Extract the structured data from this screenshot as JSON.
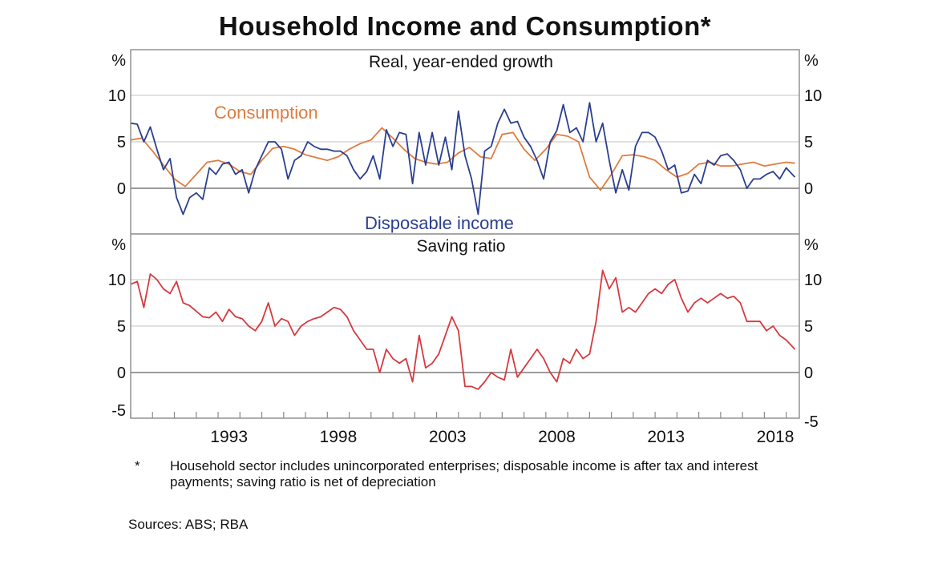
{
  "title": "Household Income and Consumption*",
  "footnote": {
    "marker": "*",
    "text": "Household sector includes unincorporated enterprises; disposable income is after tax and interest payments; saving ratio is net of depreciation"
  },
  "sources": "Sources: ABS; RBA",
  "colors": {
    "consumption": "#e07b3f",
    "disposable_income": "#2b3f8f",
    "saving_ratio": "#d63a3f",
    "grid": "#cfcfcf",
    "zero_line": "#7a7a7a",
    "frame": "#8a8a8a"
  },
  "chart_data": [
    {
      "type": "line",
      "panel": "top",
      "subtitle": "Real, year-ended growth",
      "ylabel_left": "%",
      "ylabel_right": "%",
      "ylim": [
        -5,
        15
      ],
      "yticks": [
        0,
        5,
        10
      ],
      "xticks": [
        1993,
        1998,
        2003,
        2008,
        2013,
        2018
      ],
      "x_range": [
        1988.0,
        2018.6
      ],
      "series": [
        {
          "name": "Consumption",
          "color_key": "consumption",
          "x": [
            1988.0,
            1988.5,
            1989.0,
            1989.5,
            1990.0,
            1990.5,
            1991.0,
            1991.5,
            1992.0,
            1992.5,
            1993.0,
            1993.5,
            1994.0,
            1994.5,
            1995.0,
            1995.5,
            1996.0,
            1996.5,
            1997.0,
            1997.5,
            1998.0,
            1998.5,
            1999.0,
            1999.5,
            2000.0,
            2000.5,
            2001.0,
            2001.5,
            2002.0,
            2002.5,
            2003.0,
            2003.5,
            2004.0,
            2004.5,
            2005.0,
            2005.5,
            2006.0,
            2006.5,
            2007.0,
            2007.5,
            2008.0,
            2008.5,
            2009.0,
            2009.5,
            2010.0,
            2010.5,
            2011.0,
            2011.5,
            2012.0,
            2012.5,
            2013.0,
            2013.5,
            2014.0,
            2014.5,
            2015.0,
            2015.5,
            2016.0,
            2016.5,
            2017.0,
            2017.5,
            2018.0,
            2018.4
          ],
          "y": [
            5.2,
            5.4,
            4.0,
            2.5,
            1.0,
            0.2,
            1.5,
            2.8,
            3.0,
            2.6,
            1.8,
            1.5,
            3.0,
            4.3,
            4.5,
            4.2,
            3.6,
            3.3,
            3.0,
            3.4,
            4.2,
            4.8,
            5.2,
            6.5,
            5.4,
            4.2,
            3.2,
            2.8,
            2.6,
            2.8,
            3.8,
            4.4,
            3.4,
            3.2,
            5.8,
            6.0,
            4.2,
            3.0,
            4.2,
            5.8,
            5.6,
            5.0,
            1.2,
            -0.2,
            1.5,
            3.5,
            3.6,
            3.4,
            3.0,
            2.0,
            1.2,
            1.6,
            2.6,
            2.8,
            2.4,
            2.4,
            2.6,
            2.8,
            2.4,
            2.6,
            2.8,
            2.7
          ]
        },
        {
          "name": "Disposable income",
          "color_key": "disposable_income",
          "x": [
            1988.0,
            1988.3,
            1988.6,
            1988.9,
            1989.2,
            1989.5,
            1989.8,
            1990.1,
            1990.4,
            1990.7,
            1991.0,
            1991.3,
            1991.6,
            1991.9,
            1992.2,
            1992.5,
            1992.8,
            1993.1,
            1993.4,
            1993.7,
            1994.0,
            1994.3,
            1994.6,
            1994.9,
            1995.2,
            1995.5,
            1995.8,
            1996.1,
            1996.4,
            1996.7,
            1997.0,
            1997.3,
            1997.6,
            1997.9,
            1998.2,
            1998.5,
            1998.8,
            1999.1,
            1999.4,
            1999.7,
            2000.0,
            2000.3,
            2000.6,
            2000.9,
            2001.2,
            2001.5,
            2001.8,
            2002.1,
            2002.4,
            2002.7,
            2003.0,
            2003.3,
            2003.6,
            2003.9,
            2004.2,
            2004.5,
            2004.8,
            2005.1,
            2005.4,
            2005.7,
            2006.0,
            2006.3,
            2006.6,
            2006.9,
            2007.2,
            2007.5,
            2007.8,
            2008.1,
            2008.4,
            2008.7,
            2009.0,
            2009.3,
            2009.6,
            2009.9,
            2010.2,
            2010.5,
            2010.8,
            2011.1,
            2011.4,
            2011.7,
            2012.0,
            2012.3,
            2012.6,
            2012.9,
            2013.2,
            2013.5,
            2013.8,
            2014.1,
            2014.4,
            2014.7,
            2015.0,
            2015.3,
            2015.6,
            2015.9,
            2016.2,
            2016.5,
            2016.8,
            2017.1,
            2017.4,
            2017.7,
            2018.0,
            2018.4
          ],
          "y": [
            7.0,
            6.9,
            5.0,
            6.6,
            4.2,
            2.0,
            3.2,
            -1.0,
            -2.8,
            -1.0,
            -0.5,
            -1.2,
            2.2,
            1.5,
            2.6,
            2.8,
            1.5,
            2.0,
            -0.5,
            2.0,
            3.5,
            5.0,
            5.0,
            4.2,
            1.0,
            3.0,
            3.5,
            5.0,
            4.5,
            4.2,
            4.2,
            4.0,
            4.0,
            3.5,
            2.0,
            1.0,
            1.8,
            3.5,
            1.0,
            6.3,
            4.5,
            6.0,
            5.8,
            0.5,
            6.0,
            2.5,
            6.0,
            2.5,
            5.5,
            2.0,
            8.3,
            3.5,
            1.0,
            -2.8,
            4.0,
            4.5,
            7.0,
            8.5,
            7.0,
            7.2,
            5.5,
            4.5,
            3.0,
            1.0,
            5.0,
            6.2,
            9.0,
            6.0,
            6.5,
            5.0,
            9.2,
            5.0,
            7.0,
            3.0,
            -0.5,
            2.0,
            -0.2,
            4.5,
            6.0,
            6.0,
            5.5,
            4.0,
            2.0,
            2.5,
            -0.5,
            -0.3,
            1.5,
            0.5,
            3.0,
            2.5,
            3.5,
            3.7,
            3.0,
            2.0,
            0.0,
            1.0,
            1.0,
            1.5,
            1.8,
            1.0,
            2.2,
            1.2
          ]
        }
      ],
      "annotations": [
        "Consumption",
        "Disposable income"
      ]
    },
    {
      "type": "line",
      "panel": "bottom",
      "subtitle": "Saving ratio",
      "ylabel_left": "%",
      "ylabel_right": "%",
      "ylim": [
        -5,
        15
      ],
      "yticks": [
        -5,
        0,
        5,
        10
      ],
      "xticks": [
        1993,
        1998,
        2003,
        2008,
        2013,
        2018
      ],
      "x_range": [
        1988.0,
        2018.6
      ],
      "series": [
        {
          "name": "Saving ratio",
          "color_key": "saving_ratio",
          "x": [
            1988.0,
            1988.3,
            1988.6,
            1988.9,
            1989.2,
            1989.5,
            1989.8,
            1990.1,
            1990.4,
            1990.7,
            1991.0,
            1991.3,
            1991.6,
            1991.9,
            1992.2,
            1992.5,
            1992.8,
            1993.1,
            1993.4,
            1993.7,
            1994.0,
            1994.3,
            1994.6,
            1994.9,
            1995.2,
            1995.5,
            1995.8,
            1996.1,
            1996.4,
            1996.7,
            1997.0,
            1997.3,
            1997.6,
            1997.9,
            1998.2,
            1998.5,
            1998.8,
            1999.1,
            1999.4,
            1999.7,
            2000.0,
            2000.3,
            2000.6,
            2000.9,
            2001.2,
            2001.5,
            2001.8,
            2002.1,
            2002.4,
            2002.7,
            2003.0,
            2003.3,
            2003.6,
            2003.9,
            2004.2,
            2004.5,
            2004.8,
            2005.1,
            2005.4,
            2005.7,
            2006.0,
            2006.3,
            2006.6,
            2006.9,
            2007.2,
            2007.5,
            2007.8,
            2008.1,
            2008.4,
            2008.7,
            2009.0,
            2009.3,
            2009.6,
            2009.9,
            2010.2,
            2010.5,
            2010.8,
            2011.1,
            2011.4,
            2011.7,
            2012.0,
            2012.3,
            2012.6,
            2012.9,
            2013.2,
            2013.5,
            2013.8,
            2014.1,
            2014.4,
            2014.7,
            2015.0,
            2015.3,
            2015.6,
            2015.9,
            2016.2,
            2016.5,
            2016.8,
            2017.1,
            2017.4,
            2017.7,
            2018.0,
            2018.4
          ],
          "y": [
            9.5,
            9.8,
            7.0,
            10.6,
            10.0,
            9.0,
            8.5,
            9.8,
            7.5,
            7.2,
            6.6,
            6.0,
            5.9,
            6.5,
            5.5,
            6.8,
            6.0,
            5.8,
            5.0,
            4.5,
            5.5,
            7.5,
            5.0,
            5.8,
            5.5,
            4.0,
            5.0,
            5.5,
            5.8,
            6.0,
            6.5,
            7.0,
            6.8,
            6.0,
            4.5,
            3.5,
            2.5,
            2.5,
            0.0,
            2.5,
            1.5,
            1.0,
            1.5,
            -1.0,
            4.0,
            0.5,
            1.0,
            2.0,
            4.0,
            6.0,
            4.5,
            -1.5,
            -1.5,
            -1.8,
            -1.0,
            0.0,
            -0.5,
            -0.8,
            2.5,
            -0.5,
            0.5,
            1.5,
            2.5,
            1.5,
            0.0,
            -1.0,
            1.5,
            1.0,
            2.5,
            1.5,
            2.0,
            5.5,
            11.0,
            9.0,
            10.2,
            6.5,
            7.0,
            6.5,
            7.5,
            8.5,
            9.0,
            8.5,
            9.5,
            10.0,
            8.0,
            6.5,
            7.5,
            8.0,
            7.5,
            8.0,
            8.5,
            8.0,
            8.2,
            7.5,
            5.5,
            5.5,
            5.5,
            4.5,
            5.0,
            4.0,
            3.5,
            2.5
          ]
        }
      ]
    }
  ]
}
